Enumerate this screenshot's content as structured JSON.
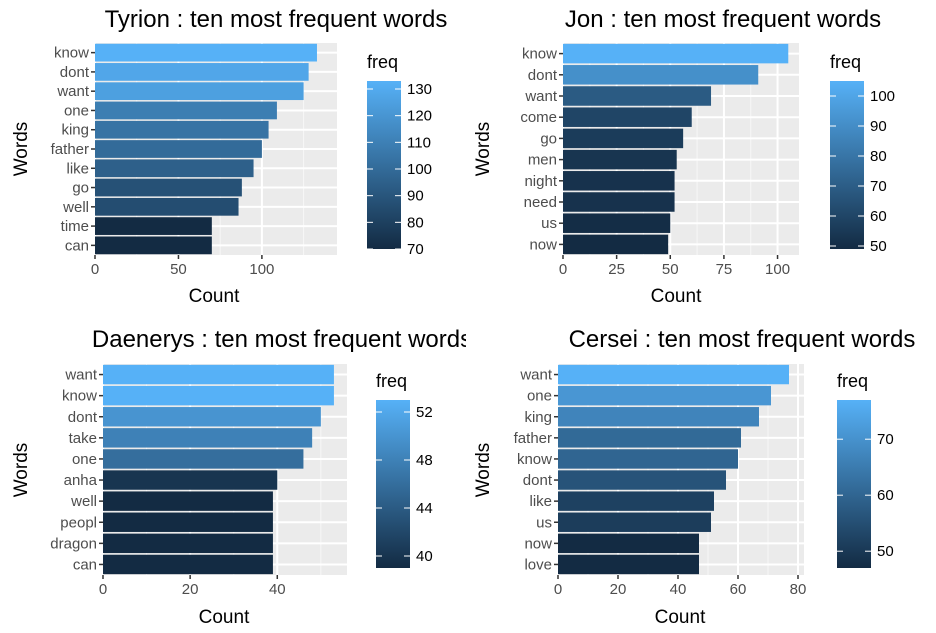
{
  "chart_data": [
    {
      "type": "bar",
      "orientation": "horizontal",
      "title": "Tyrion : ten most frequent words",
      "xlabel": "Count",
      "ylabel": "Words",
      "categories": [
        "know",
        "dont",
        "want",
        "one",
        "king",
        "father",
        "like",
        "go",
        "well",
        "time",
        "can"
      ],
      "values": [
        133,
        128,
        125,
        109,
        104,
        100,
        95,
        88,
        86,
        70,
        70
      ],
      "xlim": [
        0,
        145
      ],
      "xticks": [
        0,
        50,
        100
      ],
      "legend": {
        "title": "freq",
        "min": 70,
        "max": 133,
        "ticks": [
          70,
          80,
          90,
          100,
          110,
          120,
          130
        ],
        "placement": "right"
      },
      "grid": true
    },
    {
      "type": "bar",
      "orientation": "horizontal",
      "title": "Jon : ten most frequent words",
      "xlabel": "Count",
      "ylabel": "Words",
      "categories": [
        "know",
        "dont",
        "want",
        "come",
        "go",
        "men",
        "night",
        "need",
        "us",
        "now"
      ],
      "values": [
        105,
        91,
        69,
        60,
        56,
        53,
        52,
        52,
        50,
        49
      ],
      "xlim": [
        0,
        110
      ],
      "xticks": [
        0,
        25,
        50,
        75,
        100
      ],
      "legend": {
        "title": "freq",
        "min": 49,
        "max": 105,
        "ticks": [
          50,
          60,
          70,
          80,
          90,
          100
        ],
        "placement": "right"
      },
      "grid": true
    },
    {
      "type": "bar",
      "orientation": "horizontal",
      "title": "Daenerys : ten most frequent words",
      "xlabel": "Count",
      "ylabel": "Words",
      "categories": [
        "want",
        "know",
        "dont",
        "take",
        "one",
        "anha",
        "well",
        "peopl",
        "dragon",
        "can"
      ],
      "values": [
        53,
        53,
        50,
        48,
        46,
        40,
        39,
        39,
        39,
        39
      ],
      "xlim": [
        0,
        56
      ],
      "xticks": [
        0,
        20,
        40
      ],
      "legend": {
        "title": "freq",
        "min": 39,
        "max": 53,
        "ticks": [
          40,
          44,
          48,
          52
        ],
        "placement": "right"
      },
      "grid": true
    },
    {
      "type": "bar",
      "orientation": "horizontal",
      "title": "Cersei : ten most frequent words",
      "xlabel": "Count",
      "ylabel": "Words",
      "categories": [
        "want",
        "one",
        "king",
        "father",
        "know",
        "dont",
        "like",
        "us",
        "now",
        "love"
      ],
      "values": [
        77,
        71,
        67,
        61,
        60,
        56,
        52,
        51,
        47,
        47
      ],
      "xlim": [
        0,
        82
      ],
      "xticks": [
        0,
        20,
        40,
        60,
        80
      ],
      "legend": {
        "title": "freq",
        "min": 47,
        "max": 77,
        "ticks": [
          50,
          60,
          70
        ],
        "placement": "right"
      },
      "grid": true
    }
  ]
}
